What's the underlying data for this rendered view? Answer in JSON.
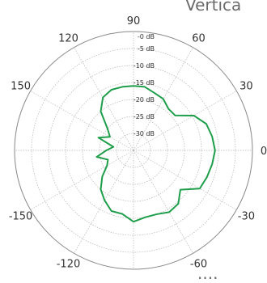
{
  "partial_text": {
    "top": "Vertica",
    "bottom": "...."
  },
  "chart_data": {
    "type": "polar-line",
    "angle_unit": "degrees",
    "angle_ticks": [
      0,
      30,
      60,
      90,
      120,
      150,
      180,
      -150,
      -120,
      -90,
      -60,
      -30
    ],
    "angle_tick_labels": [
      "0",
      "30",
      "60",
      "90",
      "120",
      "150",
      "",
      "-150",
      "-120",
      "-90",
      "-60",
      "-30"
    ],
    "radial_ticks": [
      0,
      -5,
      -10,
      -15,
      -20,
      -25,
      -30
    ],
    "radial_tick_labels": [
      "-0 dB",
      "-5 dB",
      "-10 dB",
      "-15 dB",
      "-20 dB",
      "-25 dB",
      "-30 dB"
    ],
    "r_range_db": [
      -35,
      0
    ],
    "series": [
      {
        "color": "#1e9e4a",
        "angles": [
          0,
          10,
          20,
          30,
          40,
          50,
          60,
          70,
          80,
          90,
          100,
          110,
          120,
          130,
          140,
          150,
          160,
          170,
          180,
          190,
          200,
          210,
          220,
          230,
          240,
          250,
          260,
          270,
          280,
          290,
          300,
          310,
          320,
          330,
          340,
          350
        ],
        "values": [
          -11,
          -11.5,
          -12.2,
          -14.5,
          -19,
          -19,
          -17.5,
          -17,
          -16,
          -16,
          -16,
          -16,
          -17,
          -20,
          -25,
          -27,
          -24,
          -29,
          -27,
          -24,
          -27,
          -26,
          -23,
          -20,
          -18,
          -16,
          -16,
          -14,
          -15,
          -15,
          -14,
          -14.5,
          -17,
          -12.5,
          -12,
          -11.5
        ]
      }
    ],
    "grid": true,
    "colors": {
      "grid": "#b5b5b5",
      "outer": "#888888",
      "line": "#1e9e4a"
    }
  }
}
